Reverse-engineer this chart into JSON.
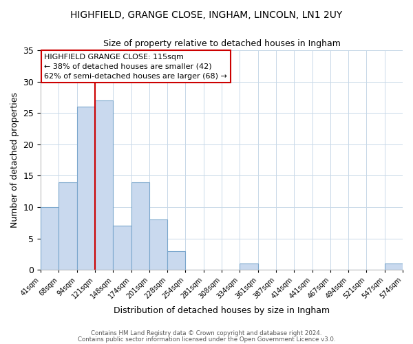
{
  "title": "HIGHFIELD, GRANGE CLOSE, INGHAM, LINCOLN, LN1 2UY",
  "subtitle": "Size of property relative to detached houses in Ingham",
  "xlabel": "Distribution of detached houses by size in Ingham",
  "ylabel": "Number of detached properties",
  "bin_labels": [
    "41sqm",
    "68sqm",
    "94sqm",
    "121sqm",
    "148sqm",
    "174sqm",
    "201sqm",
    "228sqm",
    "254sqm",
    "281sqm",
    "308sqm",
    "334sqm",
    "361sqm",
    "387sqm",
    "414sqm",
    "441sqm",
    "467sqm",
    "494sqm",
    "521sqm",
    "547sqm",
    "574sqm"
  ],
  "bar_heights": [
    10,
    14,
    26,
    27,
    7,
    14,
    8,
    3,
    0,
    0,
    0,
    1,
    0,
    0,
    0,
    0,
    0,
    0,
    0,
    1,
    0
  ],
  "bar_color": "#c9d9ee",
  "bar_edge_color": "#7aa6cc",
  "vline_color": "#cc0000",
  "ylim": [
    0,
    35
  ],
  "yticks": [
    0,
    5,
    10,
    15,
    20,
    25,
    30,
    35
  ],
  "annotation_title": "HIGHFIELD GRANGE CLOSE: 115sqm",
  "annotation_line1": "← 38% of detached houses are smaller (42)",
  "annotation_line2": "62% of semi-detached houses are larger (68) →",
  "annotation_box_color": "#ffffff",
  "annotation_box_edge": "#cc0000",
  "footer_line1": "Contains HM Land Registry data © Crown copyright and database right 2024.",
  "footer_line2": "Contains public sector information licensed under the Open Government Licence v3.0.",
  "background_color": "#ffffff",
  "grid_color": "#c8d8e8"
}
